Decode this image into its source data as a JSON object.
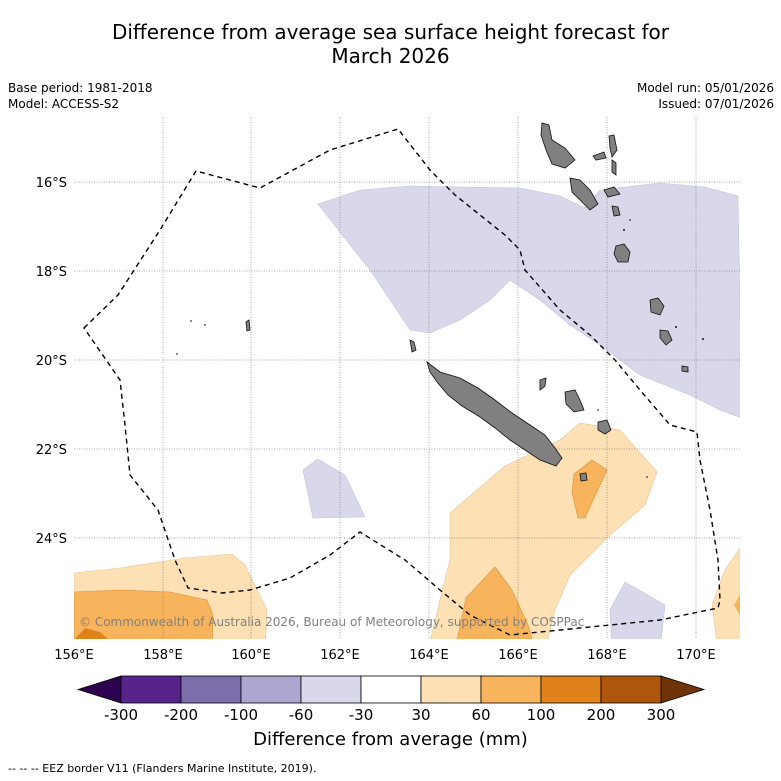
{
  "title_line1": "Difference from average sea surface height forecast for",
  "title_line2": "March 2026",
  "base_period": "Base period: 1981-2018",
  "model": "Model: ACCESS-S2",
  "model_run": "Model run: 05/01/2026",
  "issued": "Issued: 07/01/2026",
  "copyright": "© Commonwealth of Australia 2026, Bureau of Meteorology, supported by COSPPac",
  "lon_ticks": [
    "156°E",
    "158°E",
    "160°E",
    "162°E",
    "164°E",
    "166°E",
    "168°E",
    "170°E"
  ],
  "lat_ticks": [
    "16°S",
    "18°S",
    "20°S",
    "22°S",
    "24°S"
  ],
  "colorbar": {
    "labels": [
      "-300",
      "-200",
      "-100",
      "-60",
      "-30",
      "30",
      "60",
      "100",
      "200",
      "300"
    ],
    "colors": [
      "#57238b",
      "#7c6dab",
      "#aca6d0",
      "#d8d8ea",
      "#ffffff",
      "#fde0b4",
      "#f8b45c",
      "#e0821a",
      "#ad560c"
    ],
    "under_color": "#2d0050",
    "over_color": "#6e3405",
    "title": "Difference from average (mm)"
  },
  "footer": "--  --  -- EEZ border V11 (Flanders Marine Institute, 2019).",
  "colors": {
    "land": "#808080",
    "neg_light": "#d8d8ea",
    "pos_light": "#fde0b4",
    "pos_mid": "#f8b45c",
    "pos_strong": "#e0821a"
  }
}
